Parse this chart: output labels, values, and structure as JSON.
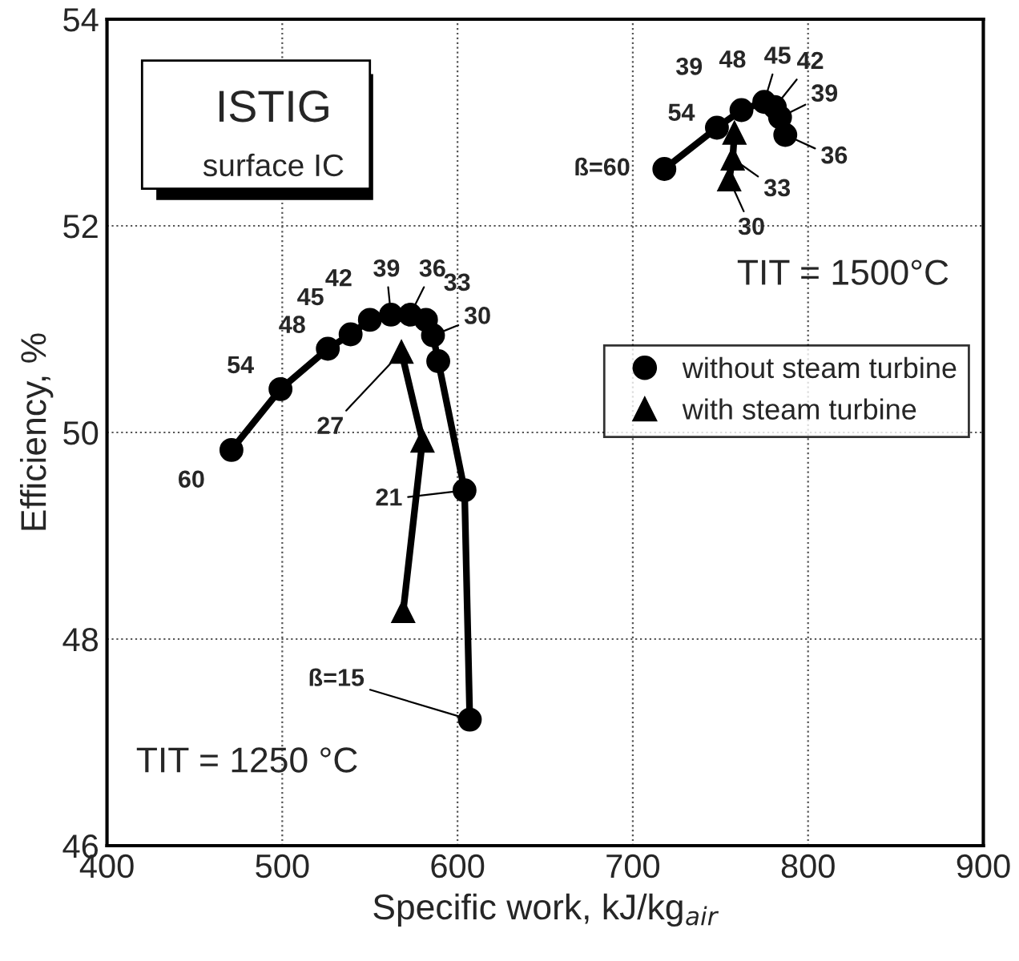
{
  "chart_data": {
    "type": "line",
    "xlabel": "Specific work, kJ/kg$_{air}$",
    "ylabel": "Efficiency, %",
    "xlim": [
      400,
      900
    ],
    "xticks": [
      400,
      500,
      600,
      700,
      800,
      900
    ],
    "ylim": [
      46,
      54
    ],
    "yticks": [
      46,
      48,
      50,
      52,
      54
    ],
    "grid": true,
    "legend": "right",
    "line_style": "solid",
    "series": [
      {
        "name": "without steam turbine",
        "color": "#000000",
        "marker": "circle",
        "x": [
          471,
          499,
          526,
          539,
          550,
          562,
          573,
          582,
          586,
          589,
          604,
          607
        ],
        "values": [
          49.83,
          50.42,
          50.81,
          50.95,
          51.09,
          51.14,
          51.14,
          51.09,
          50.94,
          50.69,
          49.44,
          47.22
        ]
      },
      {
        "name": "with steam turbine",
        "color": "#000000",
        "marker": "triangle",
        "x": [
          568,
          580,
          569
        ],
        "values": [
          50.78,
          49.92,
          48.27
        ]
      },
      {
        "color": "#000000",
        "marker": "circle",
        "x": [
          718,
          748,
          762,
          775,
          781,
          784,
          787
        ],
        "values": [
          52.55,
          52.95,
          53.12,
          53.2,
          53.15,
          53.05,
          52.88
        ]
      },
      {
        "color": "#000000",
        "marker": "triangle",
        "x": [
          758,
          757,
          755
        ],
        "values": [
          52.9,
          52.65,
          52.45
        ]
      }
    ],
    "annotations": [
      "ISTIG",
      "surface IC",
      "TIT = 1500°C",
      "TIT = 1250 °C",
      {
        "text": "60",
        "x": 471,
        "y": 49.83
      },
      {
        "text": "54",
        "x": 499,
        "y": 50.42
      },
      {
        "text": "48",
        "x": 526,
        "y": 50.81
      },
      {
        "text": "45",
        "x": 539,
        "y": 50.95
      },
      {
        "text": "42",
        "x": 550,
        "y": 51.09
      },
      {
        "text": "39",
        "x": 562,
        "y": 51.14
      },
      {
        "text": "36",
        "x": 573,
        "y": 51.14
      },
      {
        "text": "33",
        "x": 582,
        "y": 51.09
      },
      {
        "text": "30",
        "x": 586,
        "y": 50.94
      },
      {
        "text": "27",
        "x": 568,
        "y": 50.78
      },
      {
        "text": "21",
        "x": 604,
        "y": 49.44
      },
      {
        "text": "ß=15",
        "x": 607,
        "y": 47.22
      },
      {
        "text": "ß=60",
        "x": 718,
        "y": 52.55
      },
      {
        "text": "54",
        "x": 748,
        "y": 52.95
      },
      {
        "text": "39",
        "x": 755,
        "y": 53.05
      },
      {
        "text": "48",
        "x": 762,
        "y": 53.12
      },
      {
        "text": "45",
        "x": 775,
        "y": 53.2
      },
      {
        "text": "42",
        "x": 781,
        "y": 53.15
      },
      {
        "text": "39",
        "x": 784,
        "y": 53.05
      },
      {
        "text": "36",
        "x": 787,
        "y": 52.88
      },
      {
        "text": "33",
        "x": 757,
        "y": 52.65
      },
      {
        "text": "30",
        "x": 755,
        "y": 52.45
      }
    ]
  }
}
